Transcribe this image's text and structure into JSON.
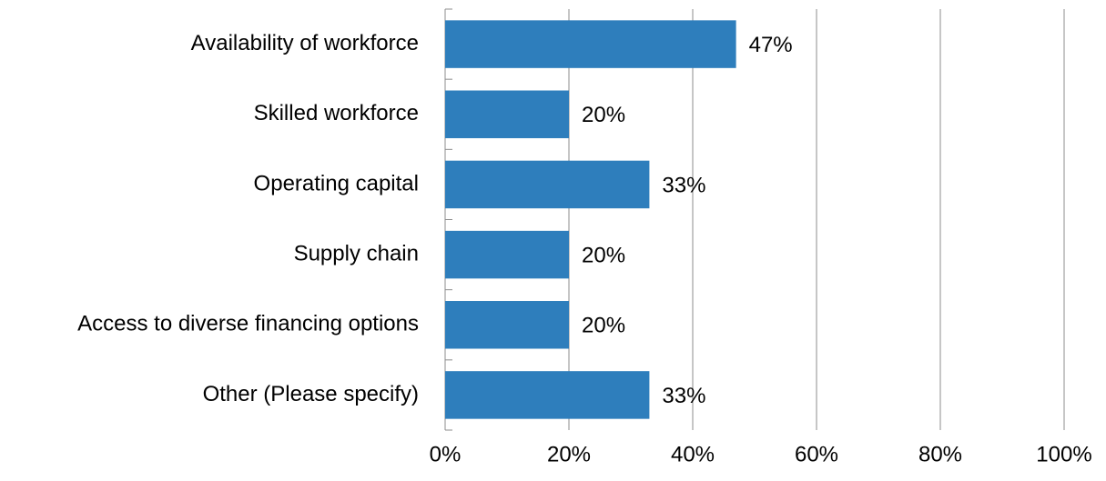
{
  "chart_data": {
    "type": "hbar",
    "categories": [
      "Availability of workforce",
      "Skilled workforce",
      "Operating capital",
      "Supply chain",
      "Access to diverse financing options",
      "Other (Please specify)"
    ],
    "values": [
      47,
      20,
      33,
      20,
      20,
      33
    ],
    "value_labels": [
      "47%",
      "20%",
      "33%",
      "20%",
      "20%",
      "33%"
    ],
    "color": "#2e7ebc",
    "xlim": [
      0,
      100
    ],
    "xticks": [
      {
        "value": 0,
        "label": "0%"
      },
      {
        "value": 20,
        "label": "20%"
      },
      {
        "value": 40,
        "label": "40%"
      },
      {
        "value": 60,
        "label": "60%"
      },
      {
        "value": 80,
        "label": "80%"
      },
      {
        "value": 100,
        "label": "100%"
      }
    ],
    "grid": true
  }
}
